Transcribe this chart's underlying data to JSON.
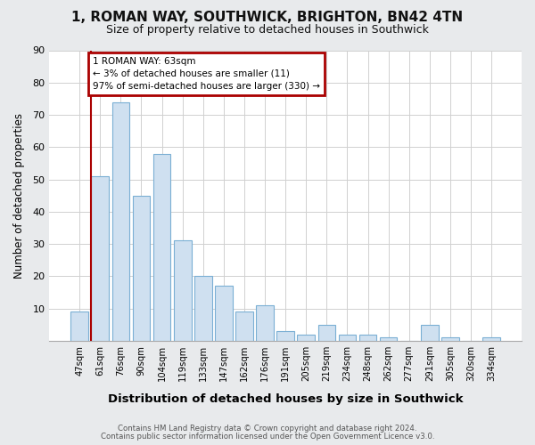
{
  "title": "1, ROMAN WAY, SOUTHWICK, BRIGHTON, BN42 4TN",
  "subtitle": "Size of property relative to detached houses in Southwick",
  "xlabel": "Distribution of detached houses by size in Southwick",
  "ylabel": "Number of detached properties",
  "categories": [
    "47sqm",
    "61sqm",
    "76sqm",
    "90sqm",
    "104sqm",
    "119sqm",
    "133sqm",
    "147sqm",
    "162sqm",
    "176sqm",
    "191sqm",
    "205sqm",
    "219sqm",
    "234sqm",
    "248sqm",
    "262sqm",
    "277sqm",
    "291sqm",
    "305sqm",
    "320sqm",
    "334sqm"
  ],
  "values": [
    9,
    51,
    74,
    45,
    58,
    31,
    20,
    17,
    9,
    11,
    3,
    2,
    5,
    2,
    2,
    1,
    0,
    5,
    1,
    0,
    1
  ],
  "bar_color": "#cfe0f0",
  "bar_edge_color": "#7aafd4",
  "annotation_title": "1 ROMAN WAY: 63sqm",
  "annotation_line1": "← 3% of detached houses are smaller (11)",
  "annotation_line2": "97% of semi-detached houses are larger (330) →",
  "annotation_box_color": "#aa0000",
  "footnote1": "Contains HM Land Registry data © Crown copyright and database right 2024.",
  "footnote2": "Contains public sector information licensed under the Open Government Licence v3.0.",
  "ylim": [
    0,
    90
  ],
  "yticks": [
    0,
    10,
    20,
    30,
    40,
    50,
    60,
    70,
    80,
    90
  ],
  "bg_color": "#e8eaec",
  "plot_bg_color": "#ffffff",
  "grid_color": "#d0d0d0",
  "title_fontsize": 11,
  "subtitle_fontsize": 9
}
